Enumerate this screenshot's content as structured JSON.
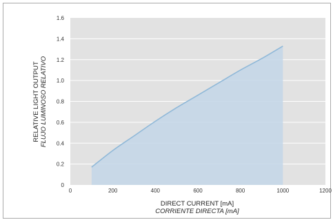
{
  "chart_data": {
    "type": "area",
    "xlabel": "DIRECT CURRENT [mA]",
    "xlabel_secondary": "CORRIENTE DIRECTA [mA]",
    "ylabel": "RELATIVE LIGHT OUTPUT",
    "ylabel_secondary": "FLUJO LUMINOSO RELATIVO",
    "xlim": [
      0,
      1200
    ],
    "ylim": [
      0,
      1.6
    ],
    "xticks": [
      "0",
      "200",
      "400",
      "600",
      "800",
      "1000",
      "1200"
    ],
    "yticks": [
      "0",
      "0.2",
      "0.4",
      "0.6",
      "0.8",
      "1.0",
      "1.2",
      "1.4",
      "1.6"
    ],
    "grid": true,
    "colors": {
      "line": "#8fb8d8",
      "fill": "#c3d6e7",
      "plot_bg": "#e2e2e2",
      "grid": "#ffffff"
    },
    "series": [
      {
        "x": [
          100,
          200,
          300,
          400,
          500,
          600,
          700,
          800,
          900,
          1000
        ],
        "y": [
          0.17,
          0.33,
          0.47,
          0.61,
          0.74,
          0.86,
          0.98,
          1.1,
          1.21,
          1.33
        ]
      }
    ]
  }
}
